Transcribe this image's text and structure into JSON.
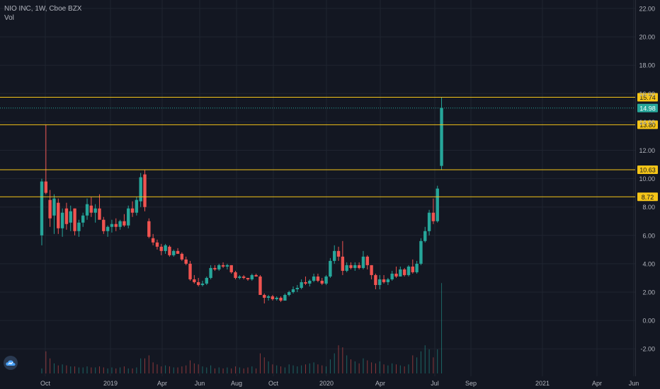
{
  "symbol_legend": "NIO INC, 1W, Cboe BZX",
  "volume_legend": "Vol",
  "colors": {
    "up": "#26a69a",
    "down": "#ef5350",
    "level": "#f5c518",
    "bg": "#131722",
    "grid": "#1f2430",
    "axis_text": "#b2b5be",
    "last_price": "#26a69a",
    "logo": "#2a3a52"
  },
  "logo_icon": "tradingview-cloud-icon",
  "chart_data": {
    "type": "candlestick",
    "y_ticks": [
      "22.00",
      "20.00",
      "18.00",
      "16.00",
      "14.00",
      "12.00",
      "10.00",
      "8.00",
      "6.00",
      "4.00",
      "2.00",
      "0.00",
      "-2.00"
    ],
    "ylim": [
      -3.6,
      22.5
    ],
    "x_ticks": [
      "Oct",
      "2019",
      "Apr",
      "Jun",
      "Aug",
      "Oct",
      "2020",
      "Apr",
      "Jul",
      "Sep",
      "2021",
      "Apr",
      "Jun"
    ],
    "horizontal_levels": [
      "15.74",
      "13.80",
      "10.63",
      "8.72"
    ],
    "last_price": "14.98",
    "candles": [
      [
        6.0,
        10.0,
        5.3,
        9.8
      ],
      [
        9.8,
        13.8,
        8.9,
        9.0
      ],
      [
        8.5,
        9.2,
        6.6,
        7.2
      ],
      [
        7.4,
        8.9,
        6.1,
        8.6
      ],
      [
        8.3,
        8.6,
        6.1,
        6.5
      ],
      [
        6.5,
        7.9,
        5.9,
        7.6
      ],
      [
        7.9,
        8.3,
        6.4,
        6.8
      ],
      [
        6.9,
        8.1,
        6.3,
        7.7
      ],
      [
        7.9,
        7.9,
        6.0,
        6.3
      ],
      [
        6.3,
        7.1,
        5.9,
        6.9
      ],
      [
        6.9,
        7.6,
        6.6,
        7.4
      ],
      [
        7.4,
        8.6,
        7.1,
        8.2
      ],
      [
        8.1,
        8.7,
        7.3,
        7.6
      ],
      [
        7.6,
        8.2,
        6.9,
        7.9
      ],
      [
        7.9,
        8.9,
        7.2,
        7.1
      ],
      [
        7.1,
        7.3,
        6.1,
        6.3
      ],
      [
        6.3,
        6.7,
        5.9,
        6.6
      ],
      [
        6.6,
        7.1,
        6.2,
        6.8
      ],
      [
        6.8,
        7.2,
        6.3,
        6.6
      ],
      [
        6.6,
        7.1,
        6.4,
        7.0
      ],
      [
        7.0,
        7.5,
        6.6,
        6.7
      ],
      [
        6.7,
        8.1,
        6.5,
        7.9
      ],
      [
        7.9,
        8.4,
        7.3,
        7.6
      ],
      [
        7.6,
        8.7,
        7.4,
        8.5
      ],
      [
        8.4,
        10.4,
        8.0,
        10.1
      ],
      [
        10.3,
        10.6,
        7.7,
        8.0
      ],
      [
        7.0,
        7.2,
        5.8,
        5.9
      ],
      [
        5.8,
        6.1,
        5.3,
        5.5
      ],
      [
        5.5,
        5.7,
        5.0,
        5.2
      ],
      [
        5.2,
        5.4,
        4.6,
        4.9
      ],
      [
        4.9,
        5.4,
        4.7,
        5.3
      ],
      [
        5.2,
        5.3,
        4.5,
        4.6
      ],
      [
        4.6,
        5.0,
        4.5,
        4.9
      ],
      [
        4.9,
        5.1,
        4.7,
        4.7
      ],
      [
        4.7,
        4.8,
        4.2,
        4.3
      ],
      [
        4.3,
        4.5,
        3.9,
        4.0
      ],
      [
        4.0,
        4.2,
        2.8,
        2.9
      ],
      [
        2.9,
        3.2,
        2.6,
        2.7
      ],
      [
        2.7,
        3.0,
        2.4,
        2.5
      ],
      [
        2.5,
        2.8,
        2.4,
        2.6
      ],
      [
        2.6,
        3.1,
        2.5,
        3.0
      ],
      [
        3.0,
        3.9,
        2.9,
        3.7
      ],
      [
        3.7,
        3.9,
        3.5,
        3.6
      ],
      [
        3.6,
        4.0,
        3.5,
        3.9
      ],
      [
        3.9,
        4.1,
        3.7,
        3.8
      ],
      [
        3.8,
        4.0,
        3.6,
        3.9
      ],
      [
        3.9,
        3.9,
        3.3,
        3.4
      ],
      [
        3.4,
        3.5,
        2.9,
        3.0
      ],
      [
        3.0,
        3.2,
        2.9,
        3.1
      ],
      [
        3.1,
        3.2,
        2.9,
        3.0
      ],
      [
        3.0,
        3.0,
        2.8,
        2.9
      ],
      [
        2.9,
        3.3,
        2.8,
        3.2
      ],
      [
        3.2,
        3.3,
        3.1,
        3.1
      ],
      [
        3.1,
        3.2,
        1.8,
        1.8
      ],
      [
        1.8,
        1.9,
        1.2,
        1.6
      ],
      [
        1.6,
        1.8,
        1.4,
        1.7
      ],
      [
        1.7,
        1.8,
        1.4,
        1.5
      ],
      [
        1.5,
        1.7,
        1.4,
        1.6
      ],
      [
        1.6,
        1.7,
        1.3,
        1.4
      ],
      [
        1.4,
        1.9,
        1.4,
        1.8
      ],
      [
        1.8,
        2.1,
        1.7,
        2.0
      ],
      [
        2.0,
        2.4,
        1.9,
        2.2
      ],
      [
        2.2,
        2.5,
        2.0,
        2.3
      ],
      [
        2.3,
        2.9,
        2.2,
        2.7
      ],
      [
        2.7,
        3.1,
        2.5,
        2.6
      ],
      [
        2.6,
        2.9,
        2.4,
        2.8
      ],
      [
        2.8,
        3.3,
        2.7,
        3.1
      ],
      [
        3.1,
        3.3,
        2.7,
        2.8
      ],
      [
        2.8,
        3.0,
        2.5,
        2.6
      ],
      [
        2.6,
        3.2,
        2.5,
        3.1
      ],
      [
        3.1,
        4.4,
        3.0,
        4.2
      ],
      [
        4.2,
        5.3,
        4.0,
        4.9
      ],
      [
        4.9,
        5.2,
        4.2,
        4.5
      ],
      [
        4.5,
        5.6,
        3.2,
        3.5
      ],
      [
        3.5,
        4.1,
        3.4,
        3.9
      ],
      [
        3.9,
        4.1,
        3.6,
        3.7
      ],
      [
        3.7,
        4.1,
        3.5,
        3.9
      ],
      [
        3.9,
        4.1,
        3.6,
        3.7
      ],
      [
        3.7,
        4.9,
        3.6,
        4.5
      ],
      [
        4.5,
        4.6,
        3.6,
        3.9
      ],
      [
        3.9,
        3.9,
        2.9,
        3.2
      ],
      [
        3.2,
        3.3,
        2.2,
        2.5
      ],
      [
        2.5,
        3.2,
        2.2,
        2.9
      ],
      [
        2.9,
        3.2,
        2.6,
        2.7
      ],
      [
        2.7,
        3.0,
        2.5,
        2.9
      ],
      [
        2.9,
        3.5,
        2.8,
        3.3
      ],
      [
        3.3,
        3.8,
        3.0,
        3.1
      ],
      [
        3.1,
        3.8,
        3.1,
        3.6
      ],
      [
        3.6,
        3.7,
        3.1,
        3.2
      ],
      [
        3.2,
        3.9,
        3.1,
        3.8
      ],
      [
        3.8,
        4.3,
        3.3,
        3.4
      ],
      [
        3.4,
        4.2,
        3.3,
        4.0
      ],
      [
        4.0,
        5.8,
        3.9,
        5.6
      ],
      [
        5.6,
        6.6,
        5.5,
        6.3
      ],
      [
        6.3,
        7.8,
        6.0,
        7.6
      ],
      [
        7.6,
        8.6,
        6.8,
        7.0
      ],
      [
        7.0,
        9.5,
        6.9,
        9.3
      ],
      [
        10.9,
        15.74,
        10.6,
        14.98
      ]
    ],
    "volumes": [
      5,
      22,
      15,
      10,
      8,
      9,
      8,
      7,
      7,
      6,
      6,
      7,
      6,
      6,
      7,
      6,
      5,
      6,
      5,
      6,
      7,
      5,
      5,
      6,
      15,
      15,
      18,
      11,
      9,
      7,
      8,
      7,
      6,
      6,
      7,
      8,
      13,
      10,
      9,
      7,
      6,
      8,
      5,
      6,
      5,
      6,
      5,
      7,
      6,
      5,
      6,
      7,
      5,
      20,
      16,
      12,
      9,
      8,
      7,
      6,
      9,
      8,
      7,
      8,
      9,
      10,
      11,
      9,
      8,
      7,
      14,
      20,
      28,
      26,
      18,
      14,
      12,
      10,
      15,
      13,
      11,
      10,
      12,
      9,
      8,
      10,
      9,
      8,
      7,
      9,
      18,
      16,
      22,
      28,
      24,
      16,
      24,
      90
    ]
  }
}
